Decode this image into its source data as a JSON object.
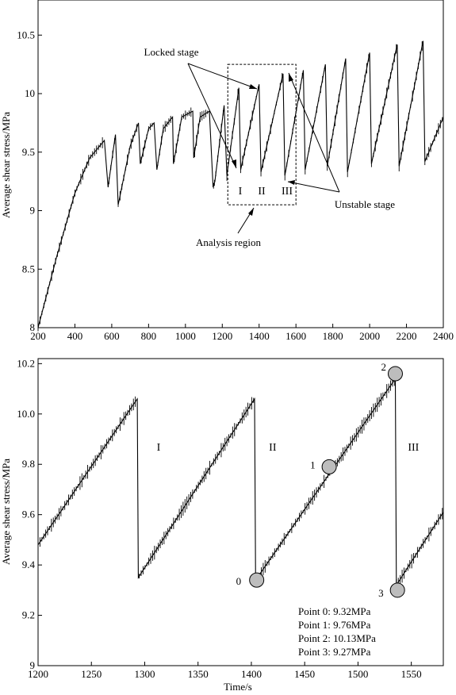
{
  "chart_data": [
    {
      "type": "line",
      "title": "",
      "xlabel": "",
      "ylabel": "Average shear stress/MPa",
      "xlim": [
        200,
        2400
      ],
      "ylim": [
        8,
        10.8
      ],
      "xticks": [
        200,
        400,
        600,
        800,
        1000,
        1200,
        1400,
        1600,
        1800,
        2000,
        2200,
        2400
      ],
      "yticks": [
        8,
        8.5,
        9,
        9.5,
        10,
        10.5
      ],
      "series": [
        {
          "x": [
            200,
            300,
            400,
            480,
            560,
            580,
            620,
            635,
            700,
            745,
            755,
            800,
            830,
            845,
            880,
            930,
            935,
            980,
            1040,
            1045,
            1080,
            1130,
            1150,
            1160,
            1210,
            1225,
            1290,
            1300,
            1400,
            1410,
            1530,
            1540,
            1640,
            1650,
            1760,
            1770,
            1870,
            1880,
            2000,
            2010,
            2150,
            2160,
            2290,
            2300,
            2400
          ],
          "y": [
            8.0,
            8.6,
            9.15,
            9.45,
            9.6,
            9.2,
            9.65,
            9.05,
            9.55,
            9.75,
            9.4,
            9.7,
            9.75,
            9.35,
            9.7,
            9.8,
            9.4,
            9.8,
            9.85,
            9.45,
            9.8,
            9.85,
            9.2,
            9.25,
            9.9,
            9.3,
            10.05,
            9.35,
            10.08,
            9.33,
            10.17,
            9.3,
            10.2,
            9.35,
            10.25,
            9.38,
            10.3,
            9.33,
            10.35,
            9.4,
            10.42,
            9.38,
            10.45,
            9.42,
            9.8
          ]
        }
      ],
      "annotations": [
        {
          "text": "Locked stage"
        },
        {
          "text": "Unstable stage"
        },
        {
          "text": "Analysis region"
        },
        {
          "text": "I"
        },
        {
          "text": "II"
        },
        {
          "text": "III"
        }
      ],
      "analysis_region": {
        "x": [
          1230,
          1600
        ],
        "y": [
          9.05,
          10.25
        ]
      }
    },
    {
      "type": "line",
      "title": "",
      "xlabel": "Time/s",
      "ylabel": "Average shear stress/MPa",
      "xlim": [
        1200,
        1580
      ],
      "ylim": [
        9.0,
        10.22
      ],
      "xticks": [
        1200,
        1250,
        1300,
        1350,
        1400,
        1450,
        1500,
        1550
      ],
      "yticks": [
        9,
        9.2,
        9.4,
        9.6,
        9.8,
        10,
        10.2
      ],
      "series": [
        {
          "x": [
            1200,
            1293,
            1294,
            1403,
            1404,
            1535,
            1536,
            1580
          ],
          "y": [
            9.48,
            10.06,
            9.35,
            10.06,
            9.34,
            10.14,
            9.32,
            9.61
          ]
        }
      ],
      "points": [
        {
          "label": "0",
          "x": 1405,
          "y": 9.34
        },
        {
          "label": "1",
          "x": 1473,
          "y": 9.79
        },
        {
          "label": "2",
          "x": 1535,
          "y": 10.16
        },
        {
          "label": "3",
          "x": 1537,
          "y": 9.3
        }
      ],
      "stage_labels": [
        {
          "text": "I",
          "x": 1313,
          "y": 9.87
        },
        {
          "text": "II",
          "x": 1420,
          "y": 9.87
        },
        {
          "text": "III",
          "x": 1552,
          "y": 9.87
        }
      ],
      "legend_box": [
        "Point 0: 9.32MPa",
        "Point 1: 9.76MPa",
        "Point 2: 10.13MPa",
        "Point 3: 9.27MPa"
      ]
    }
  ]
}
